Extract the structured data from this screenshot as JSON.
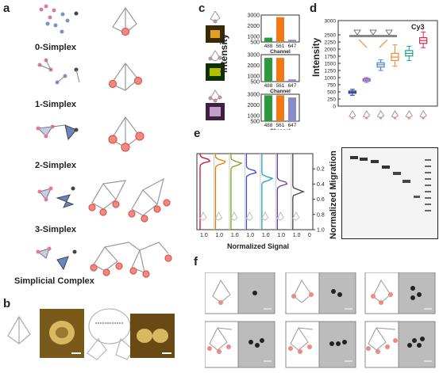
{
  "panels": {
    "a": "a",
    "b": "b",
    "c": "c",
    "d": "d",
    "e": "e",
    "f": "f"
  },
  "panel_a": {
    "rows": [
      "0-Simplex",
      "1-Simplex",
      "2-Simplex",
      "3-Simplex",
      "Simplicial Complex"
    ]
  },
  "panel_c": {
    "ylabel": "Intensity",
    "xlabel": "Channel",
    "charts": [
      {
        "categories": [
          "488",
          "561",
          "647"
        ],
        "values": [
          900,
          2800,
          700
        ],
        "yticks": [
          "3000",
          "2000",
          "1000",
          "500"
        ]
      },
      {
        "categories": [
          "488",
          "561",
          "647"
        ],
        "values": [
          2700,
          2700,
          700
        ],
        "yticks": [
          "3000",
          "2000",
          "1000",
          "500"
        ]
      },
      {
        "categories": [
          "488",
          "561",
          "647"
        ],
        "values": [
          2900,
          2900,
          2700
        ],
        "yticks": [
          "3000",
          "2000",
          "1000",
          "500"
        ]
      }
    ]
  },
  "chart_data": [
    {
      "type": "box",
      "panel": "d",
      "title": "Cy3",
      "ylabel": "Intensity",
      "ylim": [
        0,
        3000
      ],
      "yticks": [
        "0",
        "250",
        "500",
        "750",
        "1000",
        "1250",
        "1500",
        "1750",
        "2000",
        "2250",
        "2500",
        "2750",
        "3000"
      ],
      "series": [
        {
          "q1": 450,
          "median": 490,
          "q3": 530,
          "min": 380,
          "max": 590,
          "color": "#1f3a93"
        },
        {
          "q1": 880,
          "median": 920,
          "q3": 960,
          "min": 830,
          "max": 1000,
          "color": "#8a63b8"
        },
        {
          "q1": 1370,
          "median": 1450,
          "q3": 1520,
          "min": 1250,
          "max": 1620,
          "color": "#4b7fd1"
        },
        {
          "q1": 1600,
          "median": 1720,
          "q3": 1850,
          "min": 1400,
          "max": 2150,
          "color": "#f08a2b"
        },
        {
          "q1": 1760,
          "median": 1850,
          "q3": 1950,
          "min": 1600,
          "max": 2100,
          "color": "#1fa08a"
        },
        {
          "q1": 2200,
          "median": 2300,
          "q3": 2400,
          "min": 2050,
          "max": 2600,
          "color": "#d6264a"
        }
      ]
    },
    {
      "type": "line",
      "panel": "e",
      "xlabel": "Normalized Signal",
      "ylabel": "Normalized Migration",
      "ylim": [
        0,
        1
      ],
      "yticks": [
        "0.2",
        "0.4",
        "0.6",
        "0.8",
        "1.0"
      ],
      "xticks": [
        "1.0",
        "1.0",
        "1.0",
        "1.0",
        "1.0",
        "1.0",
        "1.0",
        "0"
      ],
      "series": [
        {
          "peak": 0.09,
          "color": "#c8102e"
        },
        {
          "peak": 0.11,
          "color": "#e07b00"
        },
        {
          "peak": 0.13,
          "color": "#7aa51d"
        },
        {
          "peak": 0.24,
          "color": "#3a4fd6"
        },
        {
          "peak": 0.33,
          "color": "#1fa0c8"
        },
        {
          "peak": 0.39,
          "color": "#6e3aa8"
        },
        {
          "peak": 0.5,
          "color": "#444444"
        }
      ]
    }
  ]
}
